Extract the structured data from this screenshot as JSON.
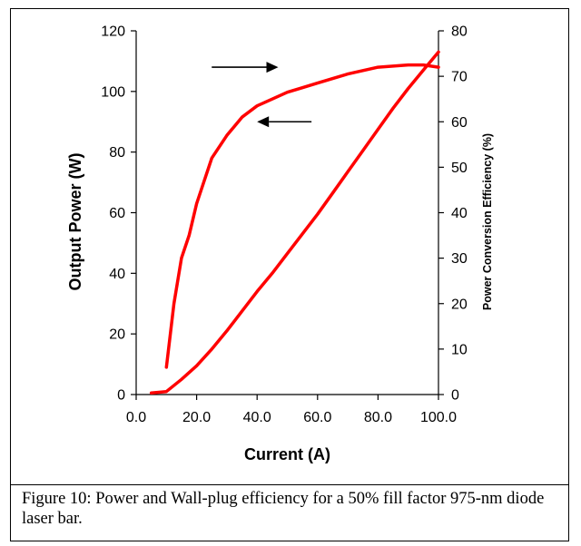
{
  "chart_data": {
    "type": "line",
    "xlabel": "Current (A)",
    "ylabel": "Output Power (W)",
    "y2label": "Power Conversion Efficiency (%)",
    "xlim": [
      0,
      100
    ],
    "ylim": [
      0,
      120
    ],
    "y2lim": [
      0,
      80
    ],
    "x_ticks": [
      "0.0",
      "20.0",
      "40.0",
      "60.0",
      "80.0",
      "100.0"
    ],
    "y_ticks": [
      "0",
      "20",
      "40",
      "60",
      "80",
      "100",
      "120"
    ],
    "y2_ticks": [
      "0",
      "10",
      "20",
      "30",
      "40",
      "50",
      "60",
      "70",
      "80"
    ],
    "grid": false,
    "series": [
      {
        "axis": "left",
        "color": "#ff0000",
        "points": [
          [
            5,
            0.5
          ],
          [
            10,
            1
          ],
          [
            15,
            5
          ],
          [
            20,
            9.5
          ],
          [
            25,
            15
          ],
          [
            30,
            21
          ],
          [
            35,
            27.5
          ],
          [
            40,
            34
          ],
          [
            45,
            40
          ],
          [
            50,
            46.5
          ],
          [
            55,
            53
          ],
          [
            60,
            59.5
          ],
          [
            65,
            66.5
          ],
          [
            70,
            73.5
          ],
          [
            75,
            80.5
          ],
          [
            80,
            87.5
          ],
          [
            85,
            94.5
          ],
          [
            90,
            101
          ],
          [
            95,
            107
          ],
          [
            100,
            113
          ]
        ]
      },
      {
        "axis": "right",
        "color": "#ff0000",
        "points": [
          [
            10,
            6
          ],
          [
            12.5,
            20
          ],
          [
            15,
            30
          ],
          [
            17.5,
            35
          ],
          [
            20,
            42
          ],
          [
            25,
            52
          ],
          [
            30,
            57
          ],
          [
            35,
            61
          ],
          [
            40,
            63.5
          ],
          [
            45,
            65
          ],
          [
            50,
            66.5
          ],
          [
            55,
            67.5
          ],
          [
            60,
            68.5
          ],
          [
            65,
            69.5
          ],
          [
            70,
            70.5
          ],
          [
            80,
            72
          ],
          [
            90,
            72.5
          ],
          [
            95,
            72.5
          ],
          [
            100,
            72
          ]
        ]
      }
    ],
    "annotations": [
      {
        "type": "arrow",
        "from": [
          25,
          72
        ],
        "to": [
          47,
          72
        ],
        "points_to": "right axis"
      },
      {
        "type": "arrow",
        "from": [
          58,
          60
        ],
        "to": [
          40,
          60
        ],
        "points_to": "left axis"
      }
    ]
  },
  "caption": "Figure 10: Power and Wall-plug efficiency for a 50% fill factor 975-nm diode laser bar."
}
